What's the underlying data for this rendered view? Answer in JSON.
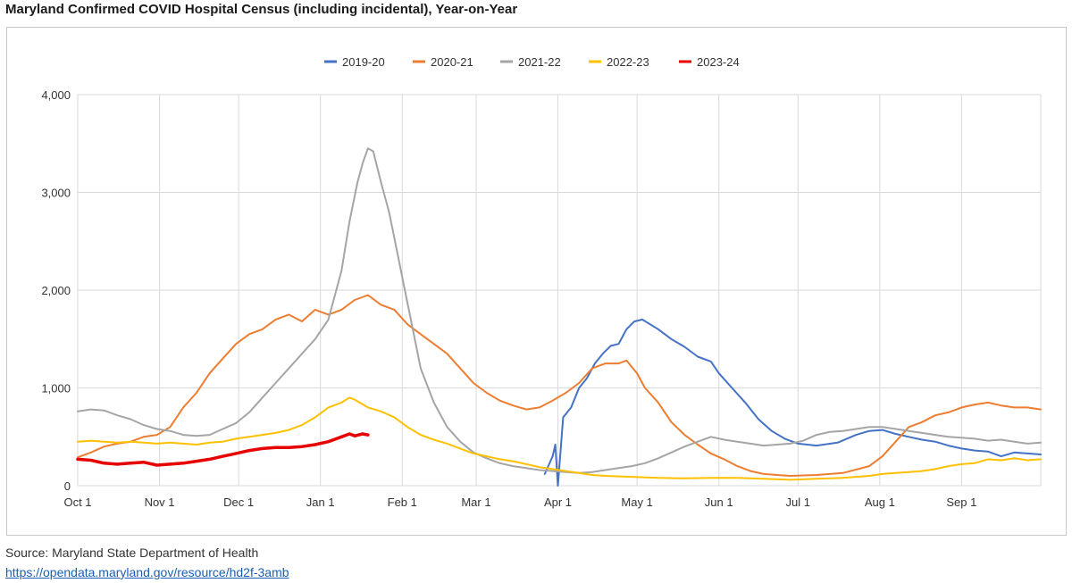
{
  "title": "Maryland Confirmed COVID Hospital Census (including incidental), Year-on-Year",
  "source_text": "Source: Maryland State Department of Health",
  "source_link": "https://opendata.maryland.gov/resource/hd2f-3amb",
  "chart_data": {
    "type": "line",
    "title": "Maryland Confirmed COVID Hospital Census (including incidental), Year-on-Year",
    "xlabel": "",
    "ylabel": "",
    "ylim": [
      0,
      4000
    ],
    "yticks": [
      0,
      1000,
      2000,
      3000,
      4000
    ],
    "ytick_labels": [
      "0",
      "1,000",
      "2,000",
      "3,000",
      "4,000"
    ],
    "xticks": [
      "Oct 1",
      "Nov 1",
      "Dec 1",
      "Jan 1",
      "Feb 1",
      "Mar 1",
      "Apr 1",
      "May 1",
      "Jun 1",
      "Jul 1",
      "Aug 1",
      "Sep 1"
    ],
    "xtick_days": [
      0,
      31,
      61,
      92,
      123,
      151,
      182,
      212,
      243,
      273,
      304,
      335
    ],
    "x_unit": "days since Oct 1",
    "xlim": [
      0,
      365
    ],
    "grid": true,
    "legend_position": "top-center",
    "series": [
      {
        "name": "2019-20",
        "color": "#4472c4",
        "points": [
          [
            177,
            120
          ],
          [
            180,
            300
          ],
          [
            181,
            420
          ],
          [
            182,
            0
          ],
          [
            184,
            700
          ],
          [
            187,
            800
          ],
          [
            190,
            1000
          ],
          [
            193,
            1100
          ],
          [
            196,
            1250
          ],
          [
            199,
            1350
          ],
          [
            202,
            1430
          ],
          [
            205,
            1450
          ],
          [
            208,
            1600
          ],
          [
            211,
            1680
          ],
          [
            214,
            1700
          ],
          [
            217,
            1650
          ],
          [
            220,
            1600
          ],
          [
            225,
            1500
          ],
          [
            230,
            1420
          ],
          [
            235,
            1320
          ],
          [
            240,
            1270
          ],
          [
            243,
            1150
          ],
          [
            248,
            1000
          ],
          [
            253,
            850
          ],
          [
            258,
            680
          ],
          [
            263,
            560
          ],
          [
            268,
            480
          ],
          [
            273,
            430
          ],
          [
            280,
            410
          ],
          [
            288,
            440
          ],
          [
            295,
            520
          ],
          [
            300,
            560
          ],
          [
            305,
            570
          ],
          [
            310,
            530
          ],
          [
            315,
            500
          ],
          [
            320,
            470
          ],
          [
            325,
            450
          ],
          [
            330,
            410
          ],
          [
            335,
            380
          ],
          [
            340,
            360
          ],
          [
            345,
            350
          ],
          [
            350,
            300
          ],
          [
            355,
            340
          ],
          [
            360,
            330
          ],
          [
            365,
            320
          ]
        ]
      },
      {
        "name": "2020-21",
        "color": "#ed7d31",
        "points": [
          [
            0,
            290
          ],
          [
            5,
            340
          ],
          [
            10,
            400
          ],
          [
            15,
            430
          ],
          [
            20,
            450
          ],
          [
            25,
            500
          ],
          [
            30,
            520
          ],
          [
            35,
            600
          ],
          [
            40,
            800
          ],
          [
            45,
            950
          ],
          [
            50,
            1150
          ],
          [
            55,
            1300
          ],
          [
            60,
            1450
          ],
          [
            65,
            1550
          ],
          [
            70,
            1600
          ],
          [
            75,
            1700
          ],
          [
            80,
            1750
          ],
          [
            85,
            1680
          ],
          [
            90,
            1800
          ],
          [
            95,
            1750
          ],
          [
            100,
            1800
          ],
          [
            105,
            1900
          ],
          [
            110,
            1950
          ],
          [
            115,
            1850
          ],
          [
            120,
            1800
          ],
          [
            125,
            1650
          ],
          [
            130,
            1550
          ],
          [
            135,
            1450
          ],
          [
            140,
            1350
          ],
          [
            145,
            1200
          ],
          [
            150,
            1050
          ],
          [
            155,
            950
          ],
          [
            160,
            870
          ],
          [
            165,
            820
          ],
          [
            170,
            780
          ],
          [
            175,
            800
          ],
          [
            180,
            870
          ],
          [
            185,
            950
          ],
          [
            190,
            1050
          ],
          [
            195,
            1200
          ],
          [
            200,
            1250
          ],
          [
            205,
            1250
          ],
          [
            208,
            1280
          ],
          [
            212,
            1150
          ],
          [
            215,
            1000
          ],
          [
            220,
            850
          ],
          [
            225,
            650
          ],
          [
            230,
            520
          ],
          [
            235,
            420
          ],
          [
            240,
            330
          ],
          [
            245,
            270
          ],
          [
            250,
            200
          ],
          [
            255,
            150
          ],
          [
            260,
            120
          ],
          [
            265,
            110
          ],
          [
            270,
            100
          ],
          [
            280,
            110
          ],
          [
            290,
            130
          ],
          [
            300,
            200
          ],
          [
            305,
            300
          ],
          [
            310,
            450
          ],
          [
            315,
            600
          ],
          [
            320,
            650
          ],
          [
            325,
            720
          ],
          [
            330,
            750
          ],
          [
            335,
            800
          ],
          [
            340,
            830
          ],
          [
            345,
            850
          ],
          [
            350,
            820
          ],
          [
            355,
            800
          ],
          [
            360,
            800
          ],
          [
            365,
            780
          ]
        ]
      },
      {
        "name": "2021-22",
        "color": "#a5a5a5",
        "points": [
          [
            0,
            760
          ],
          [
            5,
            780
          ],
          [
            10,
            770
          ],
          [
            15,
            720
          ],
          [
            20,
            680
          ],
          [
            25,
            620
          ],
          [
            30,
            580
          ],
          [
            35,
            560
          ],
          [
            40,
            520
          ],
          [
            45,
            510
          ],
          [
            50,
            520
          ],
          [
            55,
            580
          ],
          [
            60,
            640
          ],
          [
            65,
            750
          ],
          [
            70,
            900
          ],
          [
            75,
            1050
          ],
          [
            80,
            1200
          ],
          [
            85,
            1350
          ],
          [
            90,
            1500
          ],
          [
            95,
            1700
          ],
          [
            100,
            2200
          ],
          [
            103,
            2700
          ],
          [
            106,
            3100
          ],
          [
            108,
            3300
          ],
          [
            110,
            3450
          ],
          [
            112,
            3420
          ],
          [
            115,
            3100
          ],
          [
            118,
            2800
          ],
          [
            121,
            2400
          ],
          [
            124,
            2000
          ],
          [
            127,
            1600
          ],
          [
            130,
            1200
          ],
          [
            135,
            850
          ],
          [
            140,
            600
          ],
          [
            145,
            450
          ],
          [
            150,
            340
          ],
          [
            155,
            280
          ],
          [
            160,
            230
          ],
          [
            165,
            200
          ],
          [
            170,
            180
          ],
          [
            175,
            160
          ],
          [
            180,
            150
          ],
          [
            185,
            140
          ],
          [
            190,
            130
          ],
          [
            195,
            140
          ],
          [
            200,
            160
          ],
          [
            205,
            180
          ],
          [
            210,
            200
          ],
          [
            215,
            230
          ],
          [
            220,
            280
          ],
          [
            225,
            340
          ],
          [
            230,
            400
          ],
          [
            235,
            450
          ],
          [
            240,
            500
          ],
          [
            245,
            470
          ],
          [
            250,
            450
          ],
          [
            255,
            430
          ],
          [
            260,
            410
          ],
          [
            265,
            420
          ],
          [
            270,
            430
          ],
          [
            275,
            460
          ],
          [
            280,
            520
          ],
          [
            285,
            550
          ],
          [
            290,
            560
          ],
          [
            295,
            580
          ],
          [
            300,
            600
          ],
          [
            305,
            600
          ],
          [
            310,
            580
          ],
          [
            315,
            560
          ],
          [
            320,
            540
          ],
          [
            325,
            520
          ],
          [
            330,
            500
          ],
          [
            335,
            490
          ],
          [
            340,
            480
          ],
          [
            345,
            460
          ],
          [
            350,
            470
          ],
          [
            355,
            450
          ],
          [
            360,
            430
          ],
          [
            365,
            440
          ]
        ]
      },
      {
        "name": "2022-23",
        "color": "#ffc000",
        "points": [
          [
            0,
            450
          ],
          [
            5,
            460
          ],
          [
            10,
            450
          ],
          [
            15,
            440
          ],
          [
            20,
            450
          ],
          [
            25,
            440
          ],
          [
            30,
            430
          ],
          [
            35,
            440
          ],
          [
            40,
            430
          ],
          [
            45,
            420
          ],
          [
            50,
            440
          ],
          [
            55,
            450
          ],
          [
            60,
            480
          ],
          [
            65,
            500
          ],
          [
            70,
            520
          ],
          [
            75,
            540
          ],
          [
            80,
            570
          ],
          [
            85,
            620
          ],
          [
            90,
            700
          ],
          [
            95,
            800
          ],
          [
            100,
            850
          ],
          [
            103,
            900
          ],
          [
            105,
            880
          ],
          [
            110,
            800
          ],
          [
            115,
            760
          ],
          [
            120,
            700
          ],
          [
            125,
            600
          ],
          [
            130,
            520
          ],
          [
            135,
            470
          ],
          [
            140,
            430
          ],
          [
            145,
            380
          ],
          [
            150,
            330
          ],
          [
            155,
            300
          ],
          [
            160,
            270
          ],
          [
            165,
            250
          ],
          [
            170,
            220
          ],
          [
            175,
            190
          ],
          [
            180,
            170
          ],
          [
            185,
            150
          ],
          [
            190,
            130
          ],
          [
            195,
            110
          ],
          [
            200,
            100
          ],
          [
            210,
            90
          ],
          [
            220,
            80
          ],
          [
            230,
            75
          ],
          [
            240,
            80
          ],
          [
            250,
            80
          ],
          [
            260,
            70
          ],
          [
            270,
            60
          ],
          [
            280,
            70
          ],
          [
            290,
            80
          ],
          [
            300,
            100
          ],
          [
            305,
            120
          ],
          [
            310,
            130
          ],
          [
            315,
            140
          ],
          [
            320,
            150
          ],
          [
            325,
            170
          ],
          [
            330,
            200
          ],
          [
            335,
            220
          ],
          [
            340,
            230
          ],
          [
            345,
            270
          ],
          [
            350,
            260
          ],
          [
            355,
            280
          ],
          [
            360,
            260
          ],
          [
            365,
            270
          ]
        ]
      },
      {
        "name": "2023-24",
        "color": "#e60000",
        "points": [
          [
            0,
            270
          ],
          [
            5,
            260
          ],
          [
            10,
            230
          ],
          [
            15,
            220
          ],
          [
            20,
            230
          ],
          [
            25,
            240
          ],
          [
            30,
            210
          ],
          [
            35,
            220
          ],
          [
            40,
            230
          ],
          [
            45,
            250
          ],
          [
            50,
            270
          ],
          [
            55,
            300
          ],
          [
            60,
            330
          ],
          [
            65,
            360
          ],
          [
            70,
            380
          ],
          [
            75,
            390
          ],
          [
            80,
            390
          ],
          [
            85,
            400
          ],
          [
            90,
            420
          ],
          [
            95,
            450
          ],
          [
            100,
            500
          ],
          [
            103,
            530
          ],
          [
            105,
            510
          ],
          [
            108,
            530
          ],
          [
            110,
            520
          ]
        ]
      }
    ]
  }
}
